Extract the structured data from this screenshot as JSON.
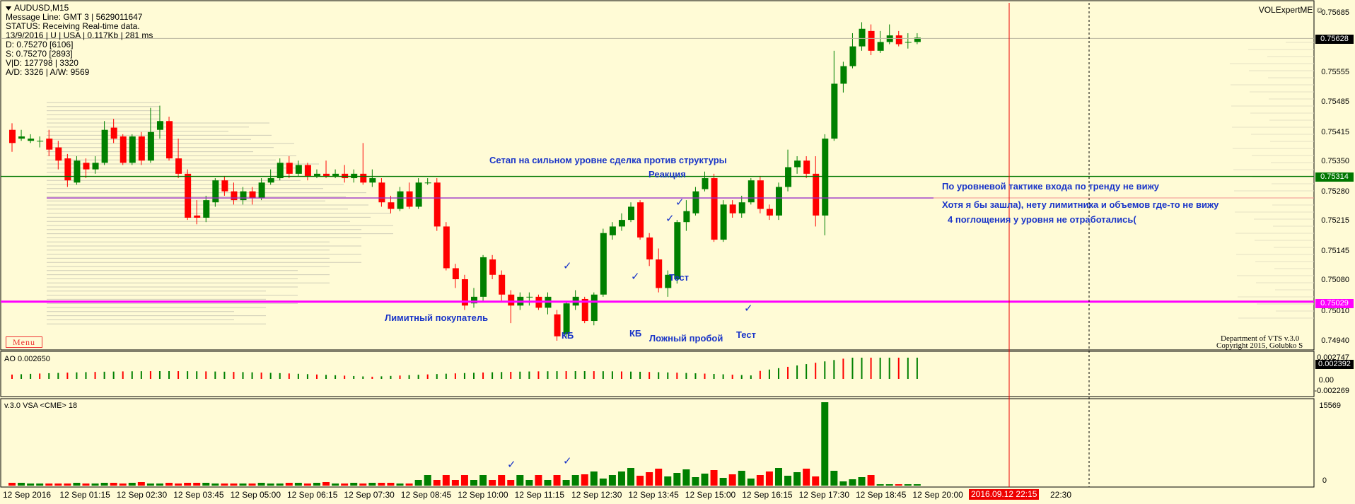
{
  "info": {
    "symbol": "AUDUSD,M15",
    "lines": [
      "Message Line: GMT 3 | 5629011647",
      "STATUS:  Receiving Real-time data.",
      "13/9/2016 | U | USA | 0.117Kb | 281 ms",
      "D: 0.75270  [6106]",
      "S: 0.75270  [2893]",
      "V|D: 127798 | 3320",
      "A/D: 3326 | A/W: 9569"
    ]
  },
  "menu_label": "Menu",
  "expert_label": "VOLExpertME ☺",
  "copyright": [
    "Department of VTS  v.3.0",
    "Copyright 2015, Golubko S"
  ],
  "ao_label": "AO 0.002650",
  "vsa_label": "v.3.0 VSA <CME> 18",
  "price_axis": [
    "0.75685",
    "0.75555",
    "0.75485",
    "0.75415",
    "0.75350",
    "0.75280",
    "0.75215",
    "0.75145",
    "0.75080",
    "0.75010",
    "0.74940"
  ],
  "price_tags": {
    "current": "0.75628",
    "green": "0.75314",
    "magenta": "0.75029"
  },
  "ao_axis": {
    "top": "0.002747",
    "tag": "0.002392",
    "zero": "0.00",
    "bottom": "-0.002269"
  },
  "vsa_axis": {
    "top": "15569",
    "bottom": "0"
  },
  "time_labels": [
    "12 Sep 2016",
    "12 Sep 01:15",
    "12 Sep 02:30",
    "12 Sep 03:45",
    "12 Sep 05:00",
    "12 Sep 06:15",
    "12 Sep 07:30",
    "12 Sep 08:45",
    "12 Sep 10:00",
    "12 Sep 11:15",
    "12 Sep 12:30",
    "12 Sep 13:45",
    "12 Sep 15:00",
    "12 Sep 16:15",
    "12 Sep 17:30",
    "12 Sep 18:45",
    "12 Sep 20:00"
  ],
  "time_cursor": "2016.09.12 22:15",
  "time_last": "22:30",
  "notes": {
    "setup": "Сетап на сильном уровне сделка против структуры",
    "reaction": "Реакция",
    "trend": "По уровневой тактике входа по тренду не вижу",
    "would_enter": "Хотя я бы зашла), нету лимитника и объемов где-то не вижу",
    "absorptions": "4 поглощения у уровня не отработались(",
    "limit_buyer": "Лимитный покупатель",
    "kb1": "КБ",
    "kb2": "КБ",
    "false_break": "Ложный пробой",
    "test1": "Тест",
    "test2": "Тест"
  },
  "levels": {
    "green": 0.75314,
    "magenta": 0.75029,
    "purple": 0.75265
  },
  "colors": {
    "bg": "#FFFBD6",
    "bull": "#008000",
    "bear": "#FF0000",
    "magenta": "#FF00FF",
    "green_line": "#007700",
    "purple_line": "#9B30C8",
    "notes": "#1a35c8"
  }
}
